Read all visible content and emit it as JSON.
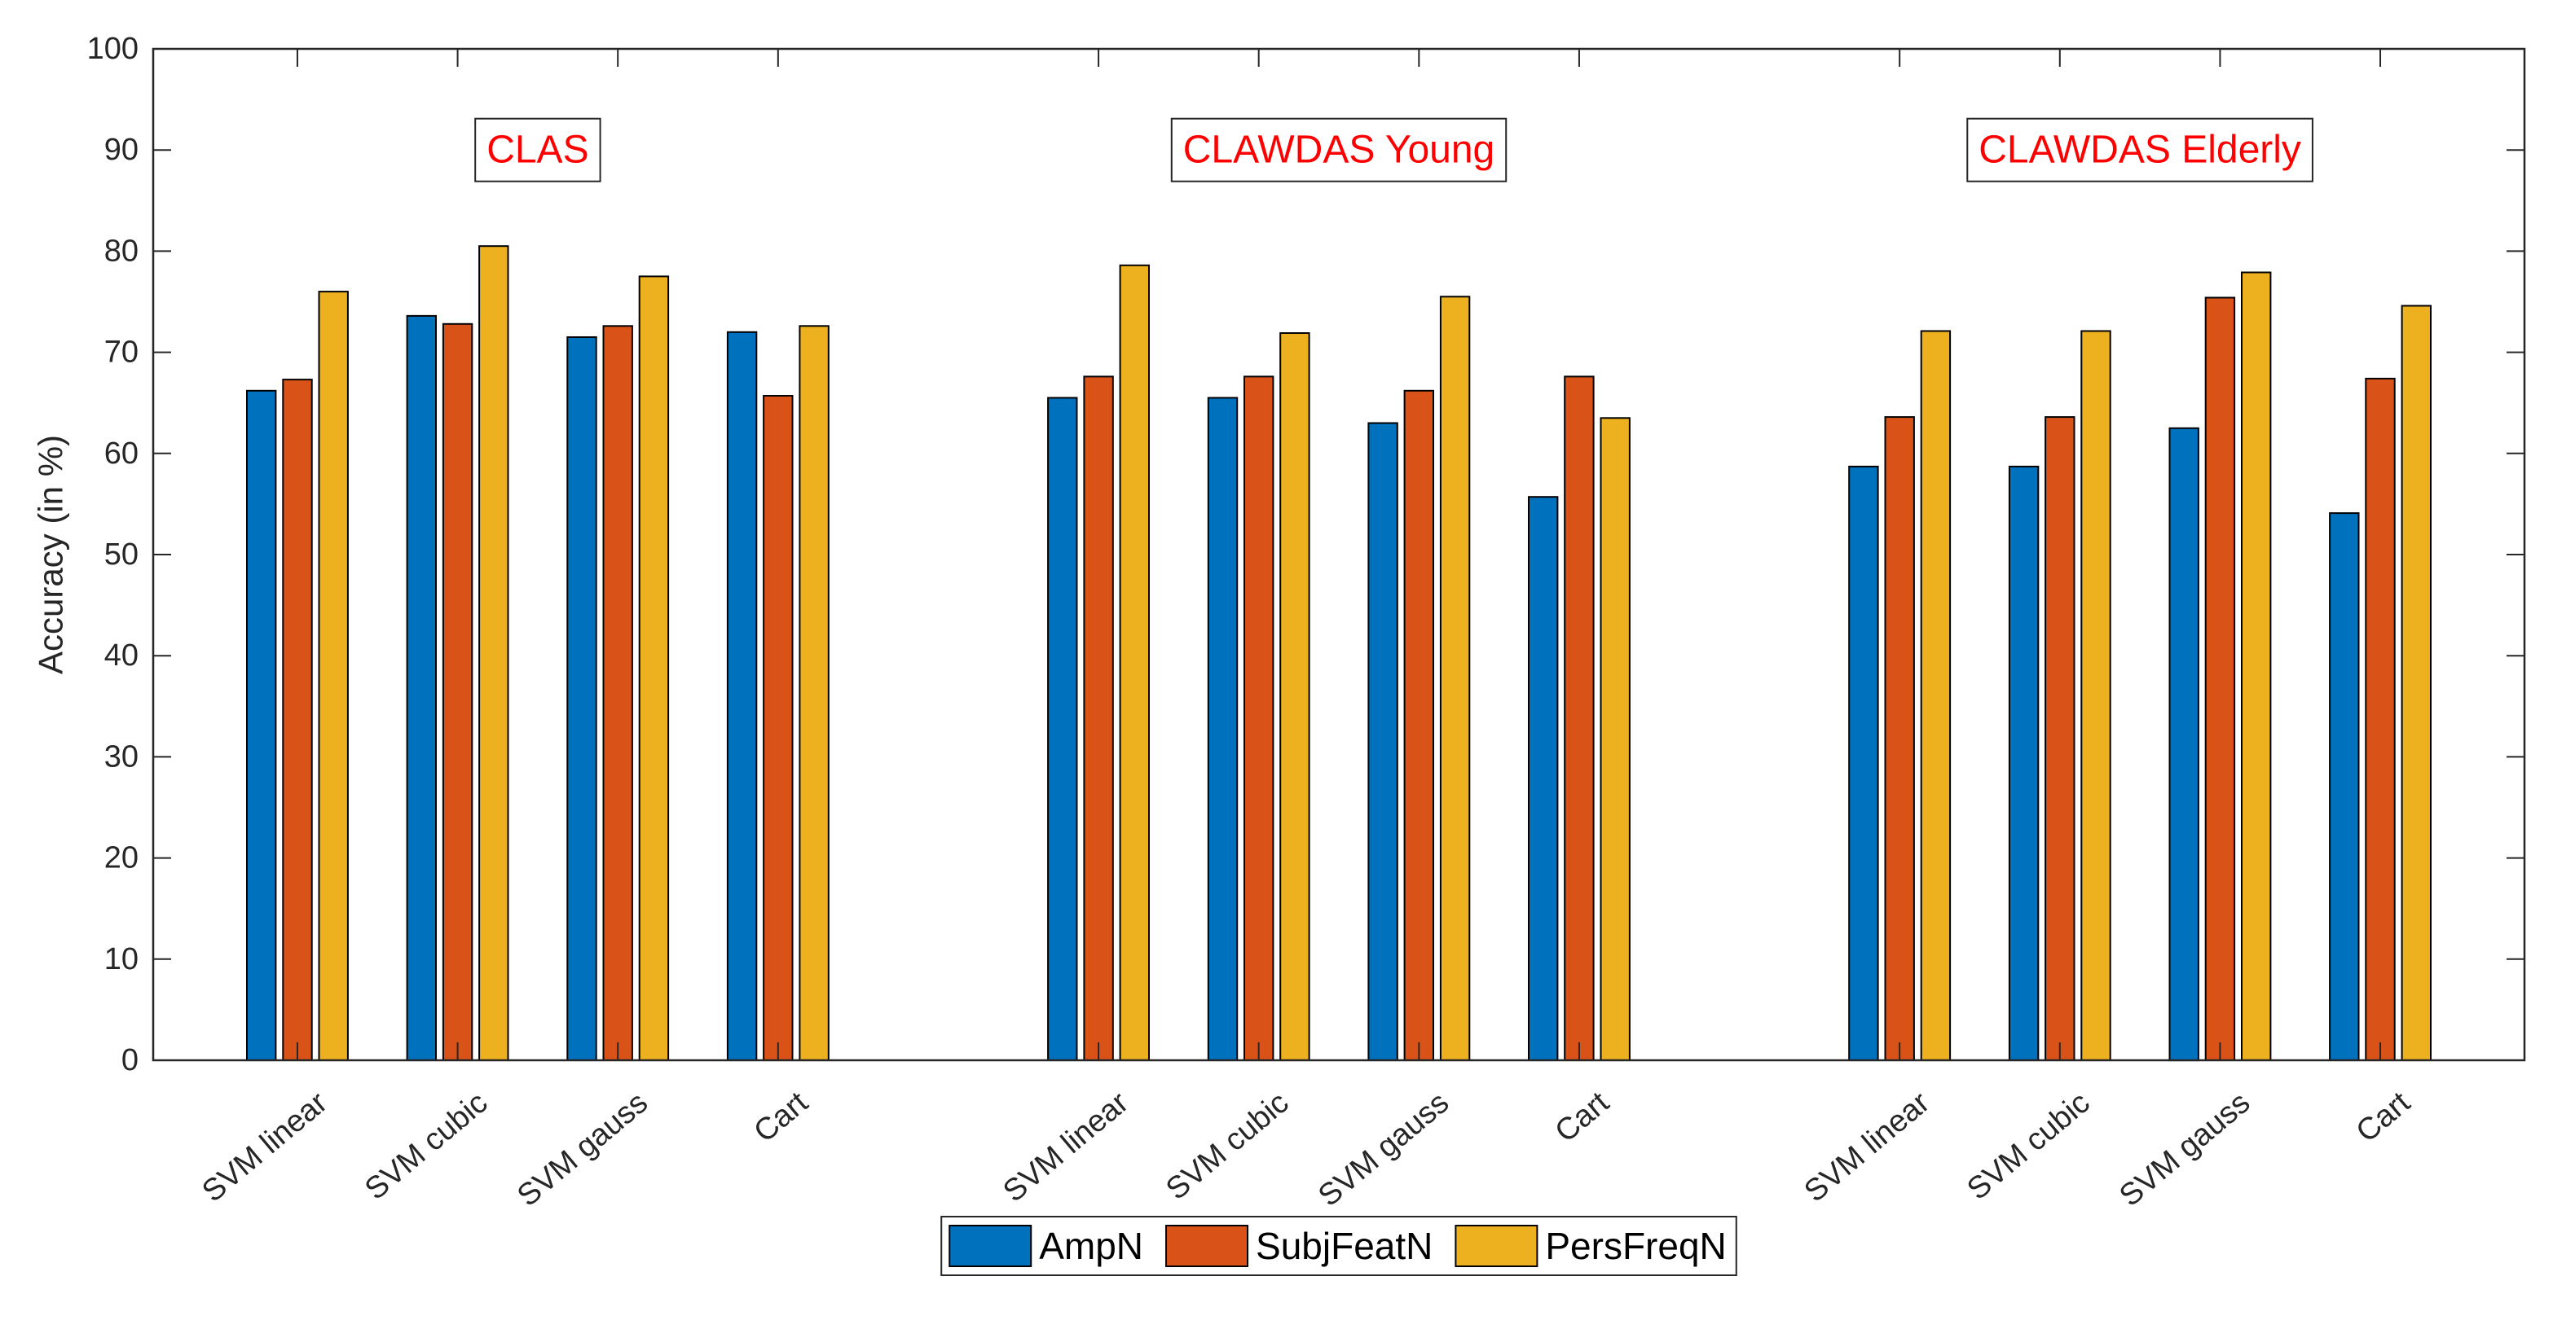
{
  "chart_data": {
    "type": "bar",
    "ylabel": "Accuracy (in %)",
    "xlabel": "",
    "ylim": [
      0,
      100
    ],
    "yticks": [
      0,
      10,
      20,
      30,
      40,
      50,
      60,
      70,
      80,
      90,
      100
    ],
    "grid": false,
    "legend_position": "bottom-center",
    "groups": [
      {
        "title": "CLAS",
        "categories": [
          "SVM linear",
          "SVM cubic",
          "SVM gauss",
          "Cart"
        ],
        "series": [
          {
            "name": "AmpN",
            "values": [
              66.2,
              73.6,
              71.5,
              72.0
            ]
          },
          {
            "name": "SubjFeatN",
            "values": [
              67.3,
              72.8,
              72.6,
              65.7
            ]
          },
          {
            "name": "PersFreqN",
            "values": [
              76.0,
              80.5,
              77.5,
              72.6
            ]
          }
        ]
      },
      {
        "title": "CLAWDAS Young",
        "categories": [
          "SVM linear",
          "SVM cubic",
          "SVM gauss",
          "Cart"
        ],
        "series": [
          {
            "name": "AmpN",
            "values": [
              65.5,
              65.5,
              63.0,
              55.7
            ]
          },
          {
            "name": "SubjFeatN",
            "values": [
              67.6,
              67.6,
              66.2,
              67.6
            ]
          },
          {
            "name": "PersFreqN",
            "values": [
              78.6,
              71.9,
              75.5,
              63.5
            ]
          }
        ]
      },
      {
        "title": "CLAWDAS Elderly",
        "categories": [
          "SVM linear",
          "SVM cubic",
          "SVM gauss",
          "Cart"
        ],
        "series": [
          {
            "name": "AmpN",
            "values": [
              58.7,
              58.7,
              62.5,
              54.1
            ]
          },
          {
            "name": "SubjFeatN",
            "values": [
              63.6,
              63.6,
              75.4,
              67.4
            ]
          },
          {
            "name": "PersFreqN",
            "values": [
              72.1,
              72.1,
              77.9,
              74.6
            ]
          }
        ]
      }
    ],
    "legend": [
      {
        "name": "AmpN",
        "color": "#0072BD"
      },
      {
        "name": "SubjFeatN",
        "color": "#D95319"
      },
      {
        "name": "PersFreqN",
        "color": "#EDB120"
      }
    ],
    "title_color": "#FF0000"
  }
}
